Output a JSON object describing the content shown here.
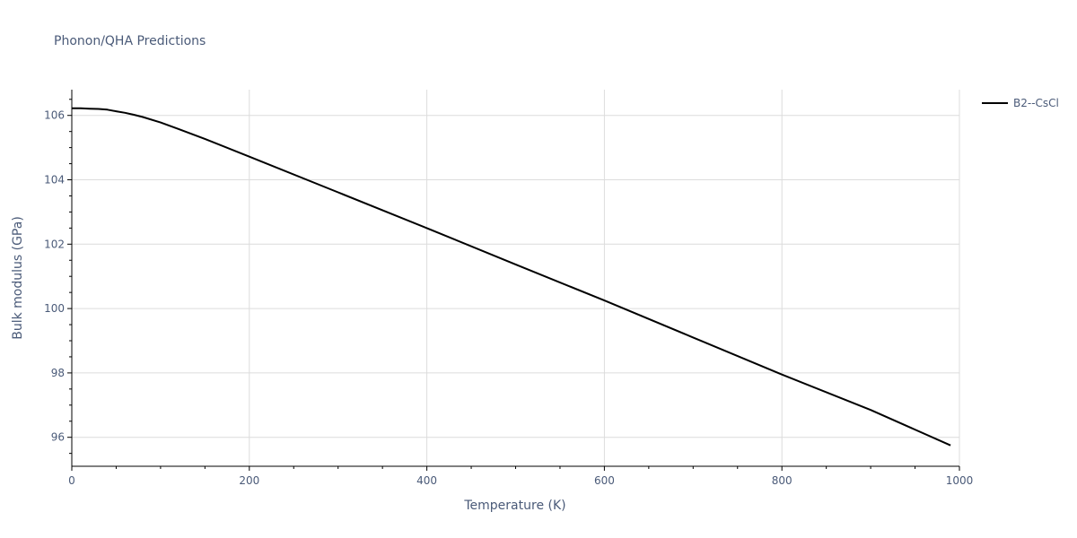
{
  "chart_data": {
    "type": "line",
    "title": "Phonon/QHA Predictions",
    "xlabel": "Temperature (K)",
    "ylabel": "Bulk modulus (GPa)",
    "xlim": [
      0,
      1000
    ],
    "ylim": [
      95.1,
      106.8
    ],
    "x_ticks": [
      0,
      200,
      400,
      600,
      800,
      1000
    ],
    "y_ticks": [
      96,
      98,
      100,
      102,
      104,
      106
    ],
    "x_tick_labels": [
      "0",
      "200",
      "400",
      "600",
      "800",
      "1000"
    ],
    "y_tick_labels": [
      "96",
      "98",
      "100",
      "102",
      "104",
      "106"
    ],
    "grid": true,
    "legend_position": "top-right",
    "series": [
      {
        "name": "B2--CsCl",
        "color": "#000000",
        "x": [
          0,
          10,
          20,
          30,
          40,
          50,
          60,
          70,
          80,
          100,
          120,
          150,
          200,
          300,
          400,
          500,
          600,
          700,
          800,
          900,
          990
        ],
        "y": [
          106.22,
          106.22,
          106.21,
          106.2,
          106.18,
          106.13,
          106.08,
          106.02,
          105.95,
          105.78,
          105.58,
          105.27,
          104.72,
          103.61,
          102.5,
          101.37,
          100.25,
          99.1,
          97.95,
          96.85,
          95.75
        ]
      }
    ]
  }
}
